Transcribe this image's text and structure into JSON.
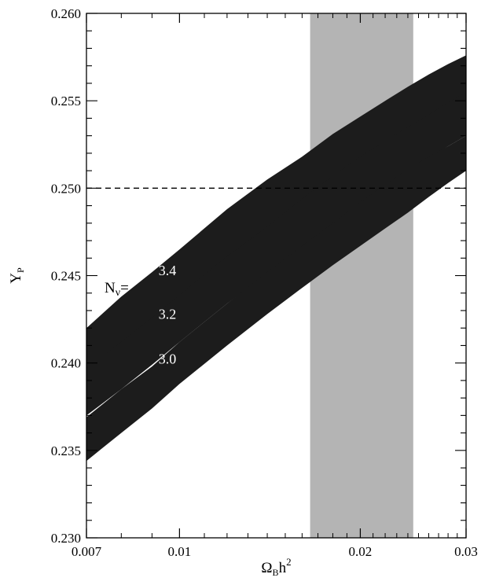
{
  "chart_data": {
    "type": "area",
    "title": "",
    "xlabel": {
      "base": "Ω",
      "sub": "B",
      "rest": "h",
      "sup": "2"
    },
    "ylabel": {
      "base": "Y",
      "sub": "P"
    },
    "x_scale": "log",
    "xlim": [
      0.007,
      0.03
    ],
    "ylim": [
      0.23,
      0.26
    ],
    "x_ticks": [
      {
        "value": 0.007,
        "label": "0.007"
      },
      {
        "value": 0.01,
        "label": "0.01"
      },
      {
        "value": 0.02,
        "label": "0.02"
      },
      {
        "value": 0.03,
        "label": "0.03"
      }
    ],
    "x_minor_ticks": [
      0.008,
      0.009,
      0.011,
      0.012,
      0.013,
      0.014,
      0.015,
      0.016,
      0.017,
      0.018,
      0.019,
      0.021,
      0.022,
      0.023,
      0.024,
      0.025,
      0.026,
      0.027,
      0.028,
      0.029
    ],
    "y_ticks": [
      {
        "value": 0.23,
        "label": "0.230"
      },
      {
        "value": 0.235,
        "label": "0.235"
      },
      {
        "value": 0.24,
        "label": "0.240"
      },
      {
        "value": 0.245,
        "label": "0.245"
      },
      {
        "value": 0.25,
        "label": "0.250"
      },
      {
        "value": 0.255,
        "label": "0.255"
      },
      {
        "value": 0.26,
        "label": "0.260"
      }
    ],
    "y_minor_step": 0.001,
    "reference_line": {
      "y": 0.25,
      "style": "dashed"
    },
    "shaded_region": {
      "x": [
        0.0165,
        0.0245
      ],
      "color": "#b4b4b4"
    },
    "band_color": "#1c1c1c",
    "series_prefix_label": "N",
    "series_prefix_sub": "ν",
    "series_prefix_eq": "=",
    "series": [
      {
        "name": "3.4",
        "x": [
          0.007,
          0.008,
          0.009,
          0.01,
          0.012,
          0.014,
          0.016,
          0.018,
          0.02,
          0.022,
          0.024,
          0.026,
          0.028,
          0.03
        ],
        "lower": [
          0.2392,
          0.2408,
          0.2423,
          0.2436,
          0.2459,
          0.2476,
          0.2492,
          0.2505,
          0.2516,
          0.2526,
          0.2534,
          0.2541,
          0.2547,
          0.2553
        ],
        "upper": [
          0.242,
          0.2438,
          0.2452,
          0.2465,
          0.2488,
          0.2505,
          0.2518,
          0.2531,
          0.2541,
          0.255,
          0.2558,
          0.2565,
          0.2571,
          0.2576
        ]
      },
      {
        "name": "3.2",
        "x": [
          0.007,
          0.008,
          0.009,
          0.01,
          0.012,
          0.014,
          0.016,
          0.018,
          0.02,
          0.022,
          0.024,
          0.026,
          0.028,
          0.03
        ],
        "lower": [
          0.237,
          0.2385,
          0.2399,
          0.2412,
          0.2434,
          0.2451,
          0.2466,
          0.2479,
          0.2491,
          0.2501,
          0.2509,
          0.2517,
          0.2524,
          0.253
        ],
        "upper": [
          0.2397,
          0.2412,
          0.2426,
          0.2439,
          0.2461,
          0.2478,
          0.2494,
          0.2507,
          0.2518,
          0.2527,
          0.2535,
          0.2542,
          0.2549,
          0.2555
        ]
      },
      {
        "name": "3.0",
        "x": [
          0.007,
          0.008,
          0.009,
          0.01,
          0.012,
          0.014,
          0.016,
          0.018,
          0.02,
          0.022,
          0.024,
          0.026,
          0.028,
          0.03
        ],
        "lower": [
          0.2344,
          0.236,
          0.2374,
          0.2388,
          0.241,
          0.2428,
          0.2443,
          0.2456,
          0.2467,
          0.2477,
          0.2486,
          0.2495,
          0.2503,
          0.251
        ],
        "upper": [
          0.2369,
          0.2385,
          0.2398,
          0.2412,
          0.2434,
          0.2452,
          0.2467,
          0.248,
          0.2492,
          0.2502,
          0.2511,
          0.2518,
          0.2524,
          0.253
        ]
      }
    ]
  }
}
